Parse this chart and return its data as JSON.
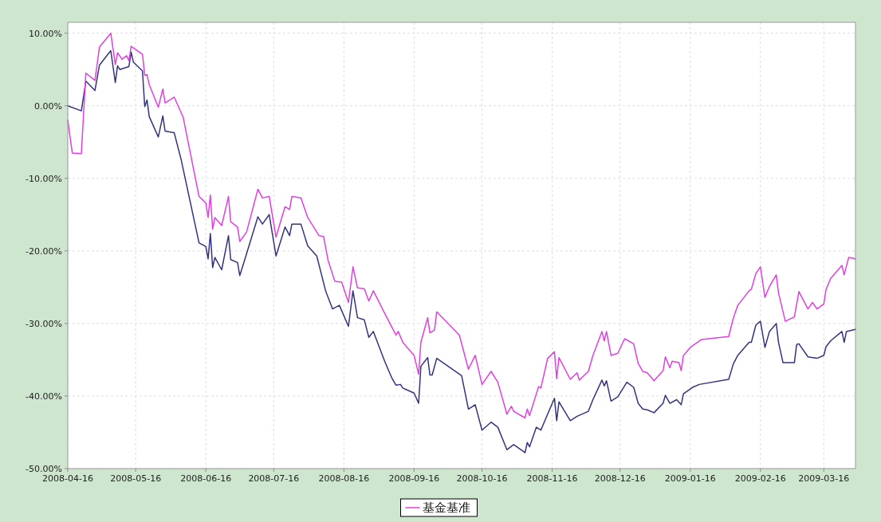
{
  "chart_data": {
    "type": "line",
    "xlim": [
      "2008-04-16",
      "2009-03-30"
    ],
    "xticks": [
      "2008-04-16",
      "2008-05-16",
      "2008-06-16",
      "2008-07-16",
      "2008-08-16",
      "2008-09-16",
      "2008-10-16",
      "2008-11-16",
      "2008-12-16",
      "2009-01-16",
      "2009-02-16",
      "2009-03-16"
    ],
    "ylim": [
      -50,
      11.5
    ],
    "yticks": [
      {
        "value": 10,
        "label": "10.00%"
      },
      {
        "value": 0,
        "label": "0.00%"
      },
      {
        "value": -10,
        "label": "-10.00%"
      },
      {
        "value": -20,
        "label": "-20.00%"
      },
      {
        "value": -30,
        "label": "-30.00%"
      },
      {
        "value": -40,
        "label": "-40.00%"
      },
      {
        "value": -50,
        "label": "-50.00%"
      }
    ],
    "grid": true,
    "legend": "bottom",
    "marker": "none",
    "line_style": "solid",
    "series": [
      {
        "color": "#333380",
        "x": [
          "2008-04-16",
          "2008-04-22",
          "2008-04-24",
          "2008-04-28",
          "2008-04-30",
          "2008-05-05",
          "2008-05-07",
          "2008-05-08",
          "2008-05-09",
          "2008-05-13",
          "2008-05-14",
          "2008-05-15",
          "2008-05-19",
          "2008-05-20",
          "2008-05-21",
          "2008-05-22",
          "2008-05-26",
          "2008-05-28",
          "2008-05-29",
          "2008-06-02",
          "2008-06-05",
          "2008-06-13",
          "2008-06-16",
          "2008-06-17",
          "2008-06-18",
          "2008-06-19",
          "2008-06-20",
          "2008-06-23",
          "2008-06-26",
          "2008-06-27",
          "2008-06-30",
          "2008-07-01",
          "2008-07-03",
          "2008-07-09",
          "2008-07-11",
          "2008-07-14",
          "2008-07-17",
          "2008-07-21",
          "2008-07-23",
          "2008-07-24",
          "2008-07-28",
          "2008-07-31",
          "2008-08-04",
          "2008-08-08",
          "2008-08-11",
          "2008-08-14",
          "2008-08-18",
          "2008-08-20",
          "2008-08-22",
          "2008-08-25",
          "2008-08-27",
          "2008-08-29",
          "2008-09-03",
          "2008-09-06",
          "2008-09-08",
          "2008-09-10",
          "2008-09-11",
          "2008-09-16",
          "2008-09-18",
          "2008-09-19",
          "2008-09-22",
          "2008-09-23",
          "2008-09-24",
          "2008-09-26",
          "2008-10-07",
          "2008-10-10",
          "2008-10-13",
          "2008-10-16",
          "2008-10-20",
          "2008-10-23",
          "2008-10-27",
          "2008-10-30",
          "2008-11-04",
          "2008-11-05",
          "2008-11-06",
          "2008-11-09",
          "2008-11-11",
          "2008-11-17",
          "2008-11-18",
          "2008-11-19",
          "2008-11-24",
          "2008-11-27",
          "2008-12-02",
          "2008-12-04",
          "2008-12-08",
          "2008-12-09",
          "2008-12-10",
          "2008-12-12",
          "2008-12-15",
          "2008-12-19",
          "2008-12-22",
          "2008-12-24",
          "2008-12-26",
          "2008-12-28",
          "2008-12-31",
          "2009-01-04",
          "2009-01-05",
          "2009-01-07",
          "2009-01-10",
          "2009-01-12",
          "2009-01-13",
          "2009-01-17",
          "2009-01-20",
          "2009-02-02",
          "2009-02-04",
          "2009-02-06",
          "2009-02-11",
          "2009-02-12",
          "2009-02-14",
          "2009-02-16",
          "2009-02-18",
          "2009-02-20",
          "2009-02-23",
          "2009-02-24",
          "2009-02-26",
          "2009-03-03",
          "2009-03-04",
          "2009-03-05",
          "2009-03-09",
          "2009-03-13",
          "2009-03-16",
          "2009-03-17",
          "2009-03-19",
          "2009-03-24",
          "2009-03-25",
          "2009-03-26",
          "2009-03-30"
        ],
        "values": [
          0.0,
          -0.7,
          3.4,
          2.1,
          5.6,
          7.6,
          3.2,
          5.5,
          5.0,
          5.4,
          7.4,
          6.0,
          4.8,
          -0.1,
          0.8,
          -1.5,
          -4.3,
          -1.4,
          -3.5,
          -3.7,
          -7.3,
          -18.9,
          -19.4,
          -21.1,
          -17.6,
          -22.3,
          -20.9,
          -22.6,
          -17.9,
          -21.2,
          -21.6,
          -23.4,
          -21.4,
          -15.3,
          -16.3,
          -15.0,
          -20.7,
          -16.7,
          -17.9,
          -16.3,
          -16.3,
          -19.3,
          -20.7,
          -25.6,
          -28.0,
          -27.5,
          -30.4,
          -25.5,
          -29.2,
          -29.5,
          -31.9,
          -31.1,
          -35.2,
          -37.4,
          -38.5,
          -38.4,
          -38.9,
          -39.6,
          -41.0,
          -35.9,
          -34.7,
          -37.1,
          -37.1,
          -34.8,
          -37.2,
          -41.8,
          -41.2,
          -44.7,
          -43.6,
          -44.3,
          -47.4,
          -46.7,
          -47.8,
          -46.4,
          -47.0,
          -44.3,
          -44.7,
          -40.3,
          -43.4,
          -40.8,
          -43.4,
          -42.8,
          -42.1,
          -40.5,
          -37.8,
          -38.6,
          -37.9,
          -40.7,
          -40.1,
          -38.1,
          -38.8,
          -41.0,
          -41.8,
          -41.9,
          -42.3,
          -41.0,
          -39.9,
          -41.0,
          -40.5,
          -41.2,
          -39.7,
          -38.8,
          -38.4,
          -37.7,
          -35.6,
          -34.4,
          -32.6,
          -32.6,
          -30.2,
          -29.7,
          -33.3,
          -31.1,
          -30.0,
          -32.6,
          -35.4,
          -35.4,
          -32.9,
          -32.8,
          -34.6,
          -34.8,
          -34.4,
          -33.2,
          -32.4,
          -31.1,
          -32.6,
          -31.1,
          -30.8
        ]
      },
      {
        "name": "基金基准",
        "color": "#e040e0",
        "x": [
          "2008-04-16",
          "2008-04-18",
          "2008-04-22",
          "2008-04-24",
          "2008-04-28",
          "2008-04-30",
          "2008-05-05",
          "2008-05-07",
          "2008-05-08",
          "2008-05-10",
          "2008-05-12",
          "2008-05-13",
          "2008-05-14",
          "2008-05-19",
          "2008-05-20",
          "2008-05-21",
          "2008-05-22",
          "2008-05-26",
          "2008-05-28",
          "2008-05-29",
          "2008-06-02",
          "2008-06-06",
          "2008-06-13",
          "2008-06-16",
          "2008-06-17",
          "2008-06-18",
          "2008-06-19",
          "2008-06-20",
          "2008-06-23",
          "2008-06-26",
          "2008-06-27",
          "2008-06-30",
          "2008-07-01",
          "2008-07-04",
          "2008-07-09",
          "2008-07-11",
          "2008-07-14",
          "2008-07-17",
          "2008-07-21",
          "2008-07-23",
          "2008-07-24",
          "2008-07-28",
          "2008-07-31",
          "2008-08-05",
          "2008-08-07",
          "2008-08-09",
          "2008-08-12",
          "2008-08-15",
          "2008-08-18",
          "2008-08-20",
          "2008-08-22",
          "2008-08-25",
          "2008-08-27",
          "2008-08-29",
          "2008-09-03",
          "2008-09-08",
          "2008-09-09",
          "2008-09-11",
          "2008-09-16",
          "2008-09-18",
          "2008-09-19",
          "2008-09-22",
          "2008-09-23",
          "2008-09-25",
          "2008-09-26",
          "2008-10-06",
          "2008-10-10",
          "2008-10-13",
          "2008-10-16",
          "2008-10-20",
          "2008-10-23",
          "2008-10-27",
          "2008-10-29",
          "2008-10-30",
          "2008-11-04",
          "2008-11-05",
          "2008-11-06",
          "2008-11-10",
          "2008-11-11",
          "2008-11-14",
          "2008-11-17",
          "2008-11-18",
          "2008-11-19",
          "2008-11-24",
          "2008-11-27",
          "2008-11-28",
          "2008-12-02",
          "2008-12-04",
          "2008-12-08",
          "2008-12-09",
          "2008-12-10",
          "2008-12-12",
          "2008-12-15",
          "2008-12-18",
          "2008-12-22",
          "2008-12-24",
          "2008-12-26",
          "2008-12-28",
          "2008-12-31",
          "2009-01-04",
          "2009-01-05",
          "2009-01-07",
          "2009-01-08",
          "2009-01-11",
          "2009-01-12",
          "2009-01-13",
          "2009-01-16",
          "2009-01-21",
          "2009-02-02",
          "2009-02-04",
          "2009-02-06",
          "2009-02-11",
          "2009-02-12",
          "2009-02-14",
          "2009-02-16",
          "2009-02-18",
          "2009-02-20",
          "2009-02-23",
          "2009-02-24",
          "2009-02-27",
          "2009-03-03",
          "2009-03-05",
          "2009-03-09",
          "2009-03-11",
          "2009-03-13",
          "2009-03-16",
          "2009-03-17",
          "2009-03-19",
          "2009-03-24",
          "2009-03-25",
          "2009-03-27",
          "2009-03-30"
        ],
        "values": [
          -2.0,
          -6.5,
          -6.6,
          4.5,
          3.5,
          8.1,
          10.0,
          5.7,
          7.3,
          6.4,
          6.9,
          6.2,
          8.2,
          7.1,
          4.2,
          4.3,
          2.9,
          -0.2,
          2.3,
          0.4,
          1.2,
          -1.6,
          -12.5,
          -13.4,
          -15.4,
          -12.3,
          -17.0,
          -15.4,
          -16.5,
          -12.5,
          -16.0,
          -16.7,
          -18.7,
          -17.4,
          -11.5,
          -12.7,
          -12.5,
          -18.1,
          -13.9,
          -14.3,
          -12.5,
          -12.7,
          -15.4,
          -17.9,
          -18.0,
          -21.3,
          -24.2,
          -24.3,
          -27.1,
          -22.2,
          -25.1,
          -25.2,
          -26.9,
          -25.5,
          -28.6,
          -31.6,
          -31.1,
          -32.6,
          -34.4,
          -37.0,
          -32.6,
          -29.2,
          -31.3,
          -30.9,
          -28.4,
          -31.6,
          -36.3,
          -34.4,
          -38.4,
          -36.6,
          -38.1,
          -42.5,
          -41.4,
          -42.1,
          -43.0,
          -41.8,
          -42.7,
          -38.7,
          -38.9,
          -34.8,
          -33.9,
          -37.6,
          -34.7,
          -37.7,
          -36.8,
          -37.8,
          -36.6,
          -34.4,
          -31.1,
          -32.4,
          -31.1,
          -34.4,
          -34.1,
          -32.1,
          -32.8,
          -35.5,
          -36.6,
          -36.8,
          -37.9,
          -36.5,
          -34.6,
          -36.1,
          -35.2,
          -35.4,
          -36.5,
          -34.4,
          -33.3,
          -32.2,
          -31.8,
          -29.3,
          -27.5,
          -25.5,
          -25.3,
          -23.1,
          -22.2,
          -26.4,
          -24.9,
          -23.3,
          -25.8,
          -29.7,
          -29.1,
          -25.6,
          -28.0,
          -27.1,
          -28.0,
          -27.3,
          -25.3,
          -23.8,
          -22.0,
          -23.3,
          -20.9,
          -21.1
        ]
      }
    ]
  }
}
